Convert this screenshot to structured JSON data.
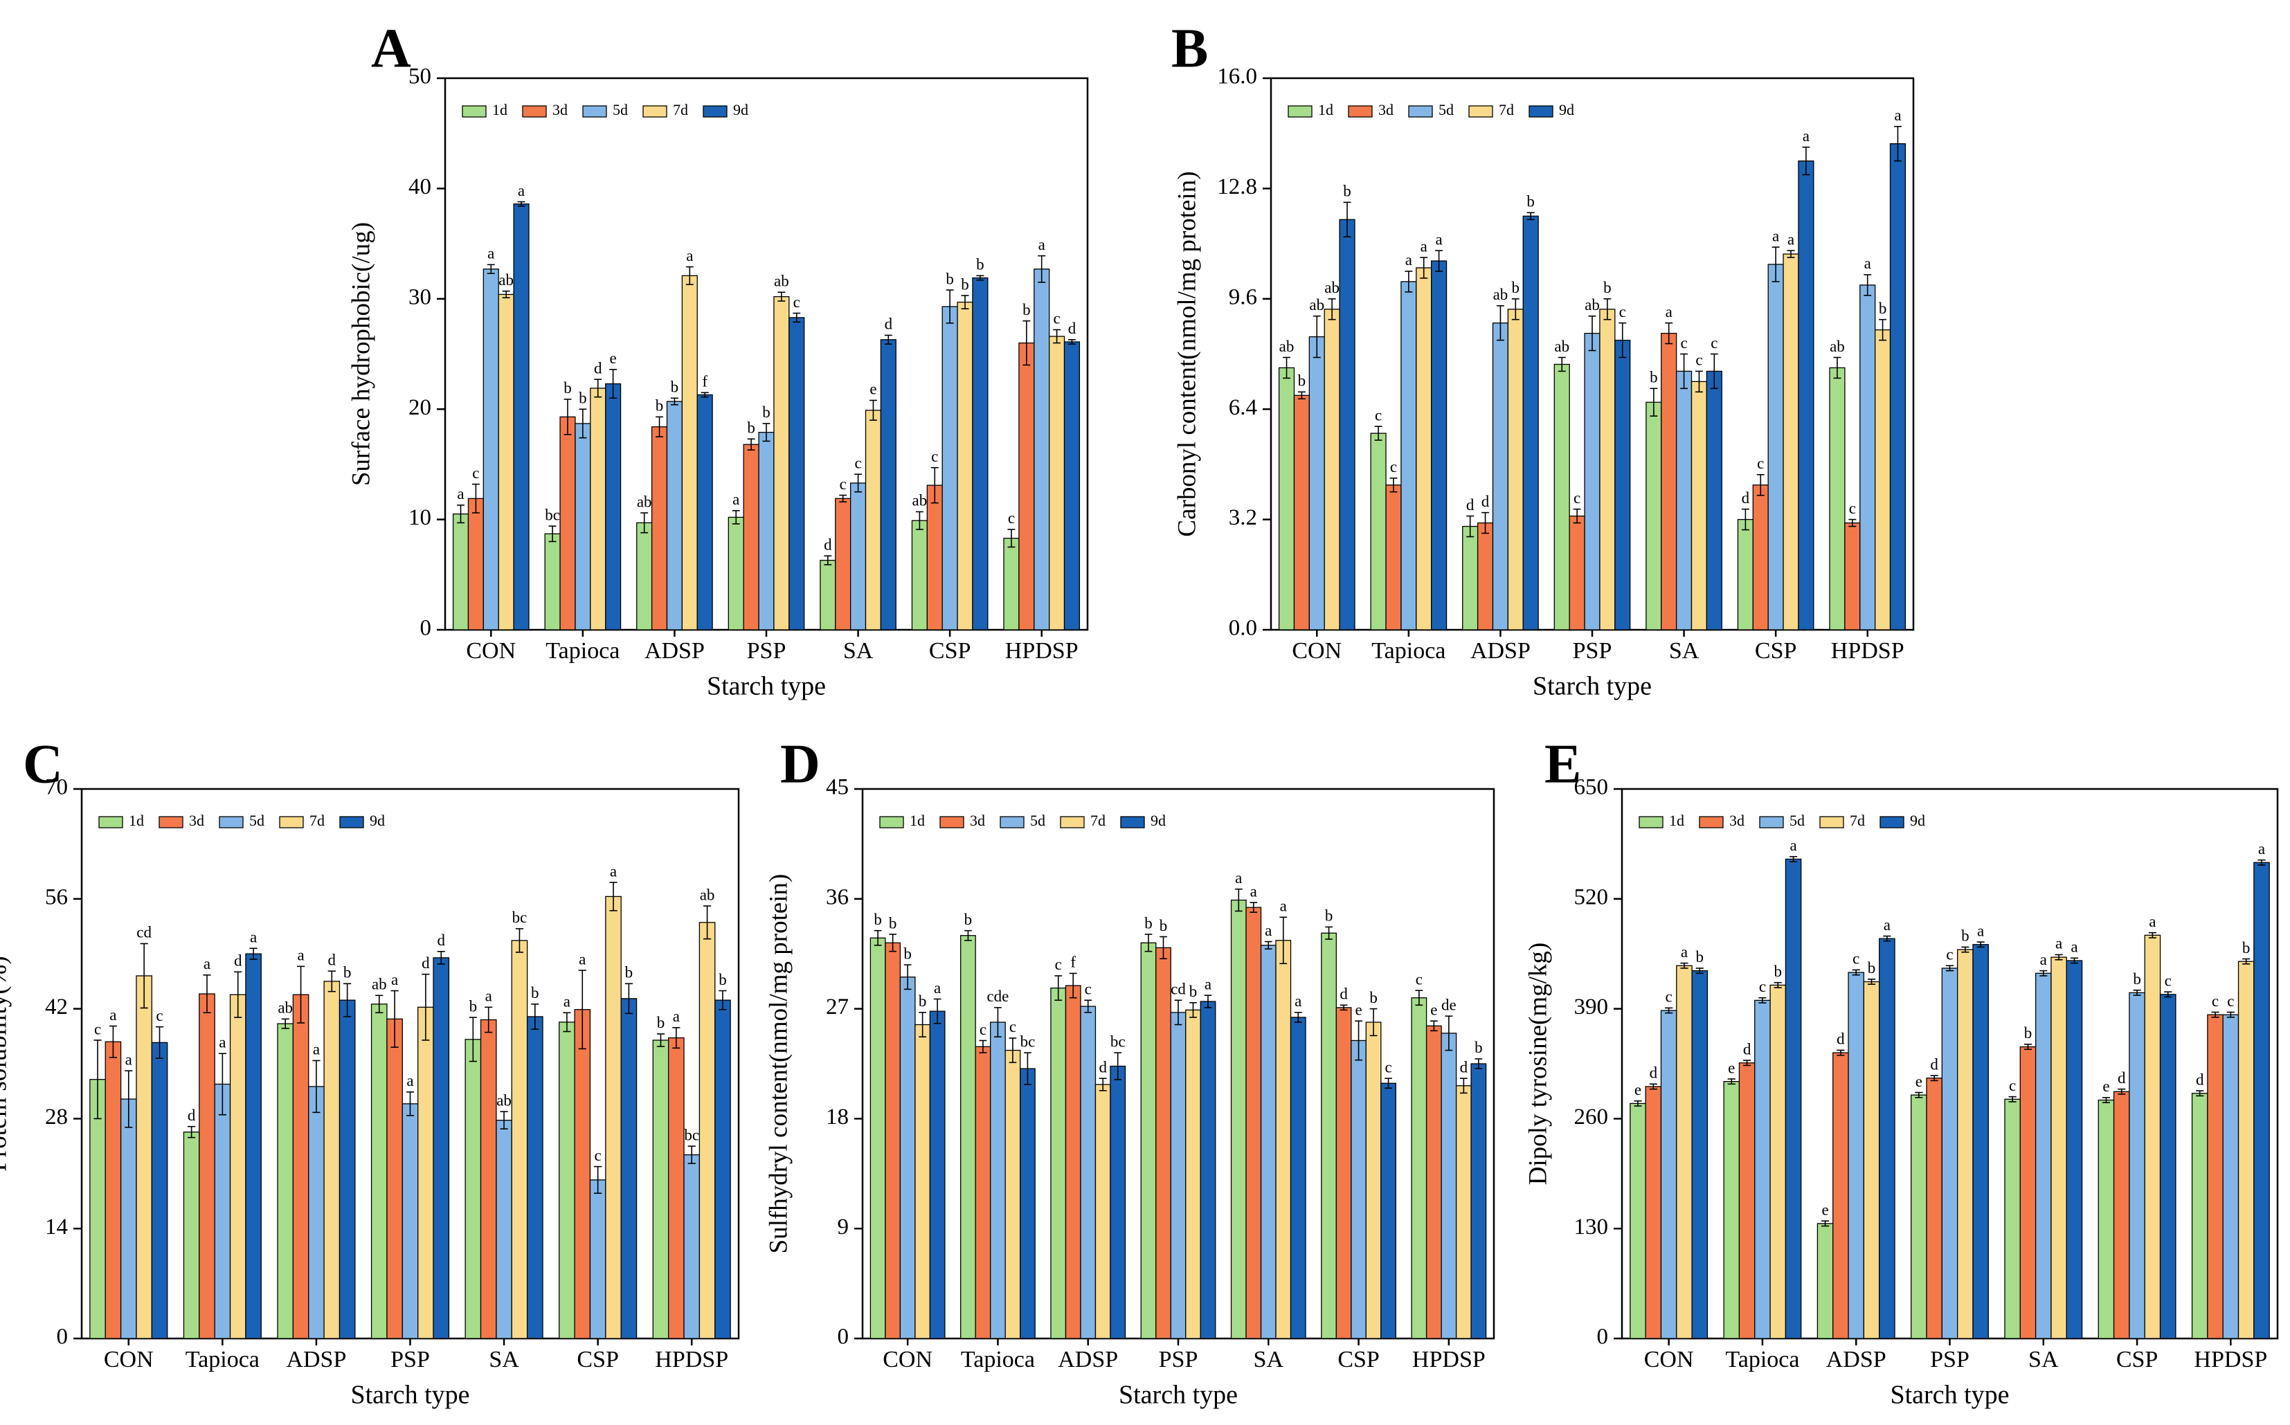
{
  "figure": {
    "colors": {
      "1d": "#a6dd8a",
      "3d": "#f4794a",
      "5d": "#83b6e6",
      "7d": "#f9da8b",
      "9d": "#1a62b5"
    }
  },
  "chart_data": [
    {
      "panel": "A",
      "type": "bar",
      "xlabel": "Starch type",
      "ylabel": "Surface hydrophobic(/ug)",
      "ylim": [
        0,
        50
      ],
      "yticks": [
        "0",
        "10",
        "20",
        "30",
        "40",
        "50"
      ],
      "categories": [
        "CON",
        "Tapioca",
        "ADSP",
        "PSP",
        "SA",
        "CSP",
        "HPDSP"
      ],
      "legend": [
        "1d",
        "3d",
        "5d",
        "7d",
        "9d"
      ],
      "series": [
        {
          "name": "1d",
          "values": [
            10.5,
            8.7,
            9.7,
            10.2,
            6.3,
            9.9,
            8.3
          ],
          "errors": [
            0.8,
            0.7,
            0.9,
            0.6,
            0.4,
            0.8,
            0.8
          ],
          "letters": [
            "a",
            "bc",
            "ab",
            "a",
            "d",
            "ab",
            "c"
          ]
        },
        {
          "name": "3d",
          "values": [
            11.9,
            19.3,
            18.4,
            16.8,
            11.9,
            13.1,
            26.0
          ],
          "errors": [
            1.3,
            1.6,
            0.9,
            0.5,
            0.3,
            1.6,
            2.0
          ],
          "letters": [
            "c",
            "b",
            "b",
            "b",
            "c",
            "c",
            "b"
          ]
        },
        {
          "name": "5d",
          "values": [
            32.7,
            18.7,
            20.7,
            17.9,
            13.3,
            29.3,
            32.7
          ],
          "errors": [
            0.4,
            1.3,
            0.3,
            0.8,
            0.8,
            1.5,
            1.2
          ],
          "letters": [
            "a",
            "b",
            "b",
            "b",
            "c",
            "b",
            "a"
          ]
        },
        {
          "name": "7d",
          "values": [
            30.4,
            21.9,
            32.1,
            30.2,
            19.9,
            29.7,
            26.6
          ],
          "errors": [
            0.3,
            0.8,
            0.8,
            0.4,
            0.9,
            0.6,
            0.6
          ],
          "letters": [
            "ab",
            "d",
            "a",
            "ab",
            "e",
            "b",
            "c"
          ]
        },
        {
          "name": "9d",
          "values": [
            38.6,
            22.3,
            21.3,
            28.3,
            26.3,
            31.9,
            26.1
          ],
          "errors": [
            0.2,
            1.3,
            0.2,
            0.4,
            0.4,
            0.2,
            0.2
          ],
          "letters": [
            "a",
            "e",
            "f",
            "c",
            "d",
            "b",
            "d"
          ]
        }
      ]
    },
    {
      "panel": "B",
      "type": "bar",
      "xlabel": "Starch type",
      "ylabel": "Carbonyl content(nmol/mg protein)",
      "ylim": [
        0,
        16
      ],
      "yticks": [
        "0.0",
        "3.2",
        "6.4",
        "9.6",
        "12.8",
        "16.0"
      ],
      "categories": [
        "CON",
        "Tapioca",
        "ADSP",
        "PSP",
        "SA",
        "CSP",
        "HPDSP"
      ],
      "legend": [
        "1d",
        "3d",
        "5d",
        "7d",
        "9d"
      ],
      "series": [
        {
          "name": "1d",
          "values": [
            7.6,
            5.7,
            3.0,
            7.7,
            6.6,
            3.2,
            7.6
          ],
          "errors": [
            0.3,
            0.2,
            0.3,
            0.2,
            0.4,
            0.3,
            0.3
          ],
          "letters": [
            "ab",
            "c",
            "d",
            "ab",
            "b",
            "d",
            "ab"
          ]
        },
        {
          "name": "3d",
          "values": [
            6.8,
            4.2,
            3.1,
            3.3,
            8.6,
            4.2,
            3.1
          ],
          "errors": [
            0.1,
            0.2,
            0.3,
            0.2,
            0.3,
            0.3,
            0.1
          ],
          "letters": [
            "b",
            "c",
            "d",
            "c",
            "a",
            "c",
            "c"
          ]
        },
        {
          "name": "5d",
          "values": [
            8.5,
            10.1,
            8.9,
            8.6,
            7.5,
            10.6,
            10.0
          ],
          "errors": [
            0.6,
            0.3,
            0.5,
            0.5,
            0.5,
            0.5,
            0.3
          ],
          "letters": [
            "ab",
            "a",
            "ab",
            "ab",
            "c",
            "a",
            "a"
          ]
        },
        {
          "name": "7d",
          "values": [
            9.3,
            10.5,
            9.3,
            9.3,
            7.2,
            10.9,
            8.7
          ],
          "errors": [
            0.3,
            0.3,
            0.3,
            0.3,
            0.3,
            0.1,
            0.3
          ],
          "letters": [
            "ab",
            "a",
            "b",
            "b",
            "c",
            "a",
            "b"
          ]
        },
        {
          "name": "9d",
          "values": [
            11.9,
            10.7,
            12.0,
            8.4,
            7.5,
            13.6,
            14.1
          ],
          "errors": [
            0.5,
            0.3,
            0.1,
            0.5,
            0.5,
            0.4,
            0.5
          ],
          "letters": [
            "b",
            "a",
            "b",
            "c",
            "c",
            "a",
            "a"
          ]
        }
      ]
    },
    {
      "panel": "C",
      "type": "bar",
      "xlabel": "Starch type",
      "ylabel": "Protein solubility(%)",
      "ylim": [
        0,
        70
      ],
      "yticks": [
        "0",
        "14",
        "28",
        "42",
        "56",
        "70"
      ],
      "categories": [
        "CON",
        "Tapioca",
        "ADSP",
        "PSP",
        "SA",
        "CSP",
        "HPDSP"
      ],
      "legend": [
        "1d",
        "3d",
        "5d",
        "7d",
        "9d"
      ],
      "series": [
        {
          "name": "1d",
          "values": [
            33.0,
            26.3,
            40.1,
            42.6,
            38.1,
            40.3,
            38.0
          ],
          "errors": [
            5.0,
            0.7,
            0.6,
            1.1,
            2.8,
            1.2,
            0.8
          ],
          "letters": [
            "c",
            "d",
            "ab",
            "ab",
            "b",
            "a",
            "b"
          ]
        },
        {
          "name": "3d",
          "values": [
            37.8,
            43.9,
            43.8,
            40.7,
            40.6,
            41.9,
            38.3
          ],
          "errors": [
            2.0,
            2.4,
            3.6,
            3.6,
            1.6,
            5.0,
            1.3
          ],
          "letters": [
            "a",
            "a",
            "a",
            "a",
            "a",
            "a",
            "a"
          ]
        },
        {
          "name": "5d",
          "values": [
            30.5,
            32.4,
            32.1,
            29.9,
            27.8,
            20.2,
            23.4
          ],
          "errors": [
            3.6,
            3.9,
            3.3,
            1.5,
            1.1,
            1.7,
            1.1
          ],
          "letters": [
            "a",
            "a",
            "a",
            "a",
            "ab",
            "c",
            "bc"
          ]
        },
        {
          "name": "7d",
          "values": [
            46.2,
            43.8,
            45.5,
            42.2,
            50.7,
            56.3,
            53.0
          ],
          "errors": [
            4.1,
            2.9,
            1.3,
            4.2,
            1.5,
            1.8,
            2.1
          ],
          "letters": [
            "cd",
            "d",
            "d",
            "d",
            "bc",
            "a",
            "ab"
          ]
        },
        {
          "name": "9d",
          "values": [
            37.7,
            49.0,
            43.1,
            48.5,
            41.0,
            43.3,
            43.1
          ],
          "errors": [
            2.0,
            0.7,
            2.1,
            0.8,
            1.6,
            1.9,
            1.2
          ],
          "letters": [
            "c",
            "a",
            "b",
            "d",
            "b",
            "b",
            "b"
          ]
        }
      ]
    },
    {
      "panel": "D",
      "type": "bar",
      "xlabel": "Starch type",
      "ylabel": "Sulfhydryl content(nmol/mg protein)",
      "ylim": [
        0,
        45
      ],
      "yticks": [
        "0",
        "9",
        "18",
        "27",
        "36",
        "45"
      ],
      "categories": [
        "CON",
        "Tapioca",
        "ADSP",
        "PSP",
        "SA",
        "CSP",
        "HPDSP"
      ],
      "legend": [
        "1d",
        "3d",
        "5d",
        "7d",
        "9d"
      ],
      "series": [
        {
          "name": "1d",
          "values": [
            32.8,
            33.0,
            28.7,
            32.4,
            35.9,
            33.2,
            27.9
          ],
          "errors": [
            0.6,
            0.4,
            1.0,
            0.7,
            0.9,
            0.5,
            0.6
          ],
          "letters": [
            "b",
            "b",
            "c",
            "b",
            "a",
            "b",
            "c"
          ]
        },
        {
          "name": "3d",
          "values": [
            32.4,
            23.9,
            28.9,
            32.0,
            35.3,
            27.1,
            25.6
          ],
          "errors": [
            0.7,
            0.5,
            1.0,
            0.9,
            0.4,
            0.2,
            0.4
          ],
          "letters": [
            "b",
            "c",
            "f",
            "b",
            "a",
            "d",
            "e"
          ]
        },
        {
          "name": "5d",
          "values": [
            29.6,
            25.9,
            27.2,
            26.7,
            32.2,
            24.4,
            25.0
          ],
          "errors": [
            1.0,
            1.2,
            0.5,
            1.0,
            0.3,
            1.6,
            1.4
          ],
          "letters": [
            "b",
            "cde",
            "c",
            "cd",
            "a",
            "e",
            "de"
          ]
        },
        {
          "name": "7d",
          "values": [
            25.7,
            23.6,
            20.8,
            26.9,
            32.6,
            25.9,
            20.7
          ],
          "errors": [
            1.0,
            1.0,
            0.5,
            0.6,
            1.9,
            1.1,
            0.6
          ],
          "letters": [
            "b",
            "c",
            "d",
            "b",
            "a",
            "b",
            "d"
          ]
        },
        {
          "name": "9d",
          "values": [
            26.8,
            22.1,
            22.3,
            27.6,
            26.3,
            20.9,
            22.5
          ],
          "errors": [
            1.0,
            1.3,
            1.1,
            0.5,
            0.4,
            0.4,
            0.4
          ],
          "letters": [
            "a",
            "bc",
            "bc",
            "a",
            "a",
            "c",
            "b"
          ]
        }
      ]
    },
    {
      "panel": "E",
      "type": "bar",
      "xlabel": "Starch type",
      "ylabel": "Dipoly tyrosine(mg/kg)",
      "ylim": [
        0,
        650
      ],
      "yticks": [
        "0",
        "130",
        "260",
        "390",
        "520",
        "650"
      ],
      "categories": [
        "CON",
        "Tapioca",
        "ADSP",
        "PSP",
        "SA",
        "CSP",
        "HPDSP"
      ],
      "legend": [
        "1d",
        "3d",
        "5d",
        "7d",
        "9d"
      ],
      "series": [
        {
          "name": "1d",
          "values": [
            278,
            304,
            136,
            288,
            283,
            282,
            290
          ],
          "errors": [
            3,
            3,
            3,
            3,
            3,
            3,
            3
          ],
          "letters": [
            "e",
            "e",
            "e",
            "e",
            "c",
            "e",
            "d"
          ]
        },
        {
          "name": "3d",
          "values": [
            298,
            326,
            338,
            308,
            345,
            292,
            383
          ],
          "errors": [
            3,
            3,
            3,
            3,
            3,
            3,
            3
          ],
          "letters": [
            "d",
            "d",
            "d",
            "d",
            "b",
            "d",
            "c"
          ]
        },
        {
          "name": "5d",
          "values": [
            388,
            400,
            433,
            438,
            432,
            409,
            383
          ],
          "errors": [
            3,
            3,
            3,
            3,
            3,
            3,
            3
          ],
          "letters": [
            "c",
            "c",
            "c",
            "c",
            "a",
            "b",
            "c"
          ]
        },
        {
          "name": "7d",
          "values": [
            441,
            418,
            422,
            460,
            451,
            477,
            446
          ],
          "errors": [
            3,
            3,
            3,
            3,
            3,
            3,
            3
          ],
          "letters": [
            "a",
            "b",
            "b",
            "b",
            "a",
            "a",
            "b"
          ]
        },
        {
          "name": "9d",
          "values": [
            435,
            567,
            473,
            466,
            447,
            407,
            563
          ],
          "errors": [
            3,
            3,
            3,
            3,
            3,
            3,
            3
          ],
          "letters": [
            "b",
            "a",
            "a",
            "a",
            "a",
            "c",
            "a"
          ]
        }
      ]
    }
  ]
}
